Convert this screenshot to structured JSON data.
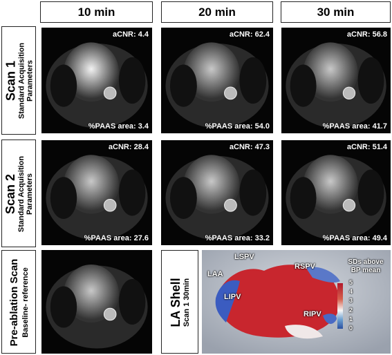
{
  "columns": [
    "10 min",
    "20 min",
    "30 min"
  ],
  "rows": [
    {
      "title": "Scan 1",
      "subtitle": "Standard Acquisition Parameters",
      "images": [
        {
          "acnr": "aCNR: 4.4",
          "paas": "%PAAS area: 3.4"
        },
        {
          "acnr": "aCNR: 62.4",
          "paas": "%PAAS area: 54.0"
        },
        {
          "acnr": "aCNR: 56.8",
          "paas": "%PAAS area: 41.7"
        }
      ]
    },
    {
      "title": "Scan 2",
      "subtitle": "Standard Acquisition Parameters",
      "images": [
        {
          "acnr": "aCNR: 28.4",
          "paas": "%PAAS area: 27.6"
        },
        {
          "acnr": "aCNR: 47.3",
          "paas": "%PAAS area: 33.2"
        },
        {
          "acnr": "aCNR: 51.4",
          "paas": "%PAAS area: 49.4"
        }
      ]
    }
  ],
  "baseline": {
    "title": "Pre-ablation Scan",
    "subtitle": "Baseline- reference"
  },
  "la_shell": {
    "title": "LA Shell",
    "subtitle": "Scan 1 30min",
    "labels": [
      "LSPV",
      "LAA",
      "RSPV",
      "LIPV",
      "RIPV"
    ],
    "legend_title": "SDs above BP mean",
    "colorbar_ticks": [
      "5",
      "4",
      "3",
      "2",
      "1",
      "0"
    ]
  }
}
